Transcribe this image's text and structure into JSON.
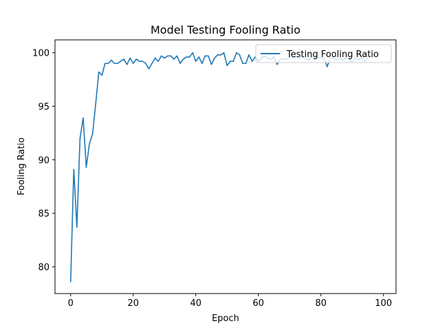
{
  "chart_data": {
    "type": "line",
    "title": "Model Testing Fooling Ratio",
    "xlabel": "Epoch",
    "ylabel": "Fooling Ratio",
    "xlim": [
      -5,
      104
    ],
    "ylim": [
      77.5,
      101.2
    ],
    "xticks": [
      0,
      20,
      40,
      60,
      80,
      100
    ],
    "yticks": [
      80,
      85,
      90,
      95,
      100
    ],
    "grid": false,
    "legend": "top-right",
    "series": [
      {
        "name": "Testing Fooling Ratio",
        "color": "#1f77b4",
        "x": [
          0,
          1,
          2,
          3,
          4,
          5,
          6,
          7,
          8,
          9,
          10,
          11,
          12,
          13,
          14,
          15,
          16,
          17,
          18,
          19,
          20,
          21,
          22,
          23,
          24,
          25,
          26,
          27,
          28,
          29,
          30,
          31,
          32,
          33,
          34,
          35,
          36,
          37,
          38,
          39,
          40,
          41,
          42,
          43,
          44,
          45,
          46,
          47,
          48,
          49,
          50,
          51,
          52,
          53,
          54,
          55,
          56,
          57,
          58,
          59,
          60,
          61,
          62,
          63,
          64,
          65,
          66,
          67,
          68,
          69,
          70,
          71,
          72,
          73,
          74,
          75,
          76,
          77,
          78,
          79,
          80,
          81,
          82,
          83,
          84,
          85,
          86,
          87,
          88,
          89,
          90,
          91,
          92,
          93,
          94,
          95
        ],
        "y": [
          78.6,
          89.1,
          83.7,
          92.0,
          93.9,
          89.3,
          91.5,
          92.4,
          95.2,
          98.2,
          97.9,
          99.0,
          99.0,
          99.3,
          99.0,
          99.0,
          99.2,
          99.4,
          98.9,
          99.5,
          99.0,
          99.4,
          99.2,
          99.2,
          99.0,
          98.5,
          99.0,
          99.5,
          99.2,
          99.7,
          99.5,
          99.7,
          99.7,
          99.4,
          99.7,
          99.0,
          99.4,
          99.6,
          99.6,
          100.0,
          99.2,
          99.6,
          99.0,
          99.7,
          99.7,
          98.9,
          99.5,
          99.8,
          99.8,
          100.0,
          98.8,
          99.2,
          99.2,
          100.0,
          99.8,
          99.0,
          99.0,
          99.8,
          99.2,
          99.6,
          99.2,
          99.5,
          99.7,
          99.5,
          99.4,
          99.6,
          98.9,
          99.4,
          99.4,
          99.4,
          99.6,
          99.5,
          99.6,
          99.5,
          99.6,
          99.5,
          99.3,
          99.6,
          99.4,
          99.6,
          99.5,
          99.5,
          98.7,
          99.5,
          99.5,
          99.3,
          99.5,
          99.3,
          99.5,
          99.5,
          99.1,
          99.5,
          99.3,
          99.6,
          99.2,
          99.5
        ]
      }
    ]
  }
}
